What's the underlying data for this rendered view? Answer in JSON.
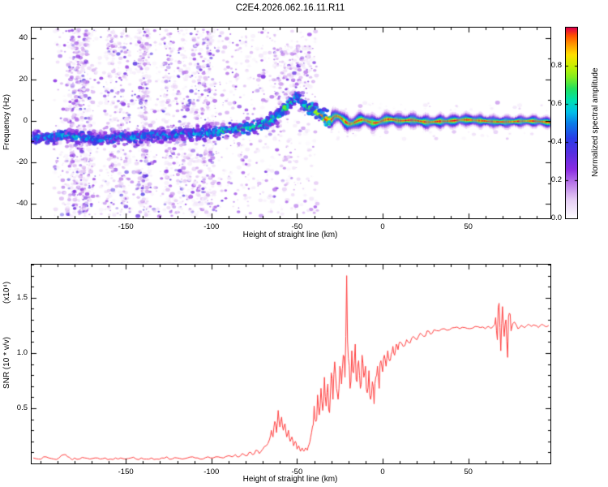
{
  "title": "C2E4.2026.062.16.11.R11",
  "chart_data": [
    {
      "type": "heatmap",
      "name": "spectrogram",
      "xlabel": "Height of straight line (km)",
      "ylabel": "Frequency (Hz)",
      "xlim": [
        -205,
        98
      ],
      "ylim": [
        -47,
        45
      ],
      "xticks": [
        -150,
        -100,
        -50,
        0,
        50
      ],
      "xtick_labels": [
        "-150",
        "-100",
        "-50",
        "0",
        "50"
      ],
      "yticks": [
        -40,
        -20,
        0,
        20,
        40
      ],
      "ytick_labels": [
        "-40",
        "-20",
        "0",
        "20",
        "40"
      ],
      "colorbar": {
        "label": "Normalized spectral amplitude",
        "range": [
          0,
          1
        ],
        "ticks": [
          0,
          0.2,
          0.4,
          0.6,
          0.8
        ],
        "tick_labels": [
          "0.0",
          "0.2",
          "0.4",
          "0.6",
          "0.8"
        ]
      },
      "colormap": [
        [
          0,
          "#ffffff"
        ],
        [
          0.03,
          "#f6effb"
        ],
        [
          0.1,
          "#e6cdf5"
        ],
        [
          0.18,
          "#bd7fe9"
        ],
        [
          0.26,
          "#8a2be2"
        ],
        [
          0.34,
          "#5a2fe0"
        ],
        [
          0.42,
          "#2a3ce8"
        ],
        [
          0.5,
          "#0a7de8"
        ],
        [
          0.56,
          "#00c0e8"
        ],
        [
          0.62,
          "#00e0b0"
        ],
        [
          0.68,
          "#20e060"
        ],
        [
          0.74,
          "#80ee20"
        ],
        [
          0.8,
          "#c8f000"
        ],
        [
          0.86,
          "#ffe000"
        ],
        [
          0.92,
          "#ff9000"
        ],
        [
          0.96,
          "#ff5000"
        ],
        [
          1,
          "#e00048"
        ]
      ],
      "ridge": {
        "points": [
          [
            -204,
            -8,
            0.5
          ],
          [
            -195,
            -8,
            0.5
          ],
          [
            -185,
            -7,
            0.52
          ],
          [
            -175,
            -8,
            0.5
          ],
          [
            -165,
            -9,
            0.46
          ],
          [
            -155,
            -8,
            0.5
          ],
          [
            -145,
            -8,
            0.47
          ],
          [
            -135,
            -7,
            0.5
          ],
          [
            -125,
            -7,
            0.48
          ],
          [
            -115,
            -6,
            0.5
          ],
          [
            -105,
            -6,
            0.52
          ],
          [
            -95,
            -5,
            0.55
          ],
          [
            -85,
            -4,
            0.57
          ],
          [
            -76,
            -3,
            0.6
          ],
          [
            -68,
            -1,
            0.6
          ],
          [
            -62,
            2,
            0.62
          ],
          [
            -57,
            6,
            0.6
          ],
          [
            -53,
            9,
            0.58
          ],
          [
            -50,
            12,
            0.52
          ],
          [
            -47,
            8,
            0.6
          ],
          [
            -44,
            6,
            0.62
          ],
          [
            -41,
            6,
            0.65
          ],
          [
            -38,
            4,
            0.7
          ],
          [
            -35,
            2,
            0.78
          ],
          [
            -32,
            1,
            0.88
          ],
          [
            -30,
            0,
            1
          ]
        ]
      },
      "noise": {
        "streaks": [
          -186,
          -100
        ],
        "bands": [
          {
            "x": [
              -192,
              -92
            ],
            "y": [
              -46,
              44
            ],
            "n": 2400,
            "vmax": 0.34,
            "streaky": true
          },
          {
            "x": [
              -92,
              -38
            ],
            "y": [
              -46,
              44
            ],
            "n": 520,
            "vmax": 0.28,
            "streaky": false
          },
          {
            "x": [
              -64,
              -42
            ],
            "y": [
              6,
              36
            ],
            "n": 200,
            "vmax": 0.3,
            "streaky": false
          },
          {
            "x": [
              -30,
              96
            ],
            "y": [
              -9,
              9
            ],
            "n": 130,
            "vmax": 0.14,
            "streaky": false,
            "avoid": 5
          }
        ]
      },
      "band": {
        "x": [
          -30,
          97.5
        ],
        "hw0": 3.2,
        "hw1": 2.2,
        "wiggle_amp": 2.3,
        "wiggle_freq": 0.42,
        "wiggle_damp": 22,
        "slow_amp": 0.45,
        "slow_freq": 0.16,
        "tail_drop_start": 70,
        "tail_drop_rate": 0.03,
        "layers": [
          [
            1.35,
            0.08
          ],
          [
            1.05,
            0.2
          ],
          [
            0.85,
            0.33
          ],
          [
            0.68,
            0.45
          ],
          [
            0.52,
            0.55
          ],
          [
            0.4,
            0.65
          ],
          [
            0.28,
            0.78
          ],
          [
            0.18,
            0.9
          ],
          [
            0.1,
            1
          ]
        ]
      }
    },
    {
      "type": "line",
      "name": "snr",
      "color": "#ff4040",
      "xlabel": "Height of straight line (km)",
      "ylabel": "SNR (10 * v/v)",
      "scale_label": "(x10⁴)",
      "xlim": [
        -205,
        98
      ],
      "ylim": [
        0,
        1.8
      ],
      "xticks": [
        -150,
        -100,
        -50,
        0,
        50
      ],
      "xtick_labels": [
        "-150",
        "-100",
        "-50",
        "0",
        "50"
      ],
      "yticks": [
        0.5,
        1,
        1.5
      ],
      "ytick_labels": [
        "0.5",
        "1.0",
        "1.5"
      ],
      "points": [
        [
          -204,
          0.05
        ],
        [
          -201,
          0.04
        ],
        [
          -198,
          0.06
        ],
        [
          -195,
          0.05
        ],
        [
          -192,
          0.04
        ],
        [
          -189,
          0.05
        ],
        [
          -186,
          0.08
        ],
        [
          -184,
          0.06
        ],
        [
          -182,
          0.04
        ],
        [
          -180,
          0.05
        ],
        [
          -177,
          0.04
        ],
        [
          -174,
          0.05
        ],
        [
          -171,
          0.04
        ],
        [
          -168,
          0.05
        ],
        [
          -165,
          0.04
        ],
        [
          -162,
          0.05
        ],
        [
          -159,
          0.04
        ],
        [
          -156,
          0.05
        ],
        [
          -153,
          0.05
        ],
        [
          -150,
          0.04
        ],
        [
          -147,
          0.05
        ],
        [
          -144,
          0.04
        ],
        [
          -141,
          0.05
        ],
        [
          -138,
          0.04
        ],
        [
          -135,
          0.05
        ],
        [
          -132,
          0.04
        ],
        [
          -129,
          0.05
        ],
        [
          -126,
          0.06
        ],
        [
          -123,
          0.04
        ],
        [
          -120,
          0.05
        ],
        [
          -117,
          0.04
        ],
        [
          -114,
          0.05
        ],
        [
          -111,
          0.06
        ],
        [
          -108,
          0.05
        ],
        [
          -105,
          0.04
        ],
        [
          -102,
          0.06
        ],
        [
          -99,
          0.05
        ],
        [
          -96,
          0.06
        ],
        [
          -93,
          0.05
        ],
        [
          -90,
          0.07
        ],
        [
          -88,
          0.06
        ],
        [
          -86,
          0.08
        ],
        [
          -84,
          0.06
        ],
        [
          -82,
          0.09
        ],
        [
          -80,
          0.07
        ],
        [
          -78,
          0.1
        ],
        [
          -76,
          0.08
        ],
        [
          -74,
          0.12
        ],
        [
          -72,
          0.09
        ],
        [
          -70,
          0.13
        ],
        [
          -68,
          0.16
        ],
        [
          -66,
          0.22
        ],
        [
          -65,
          0.3
        ],
        [
          -64,
          0.24
        ],
        [
          -63,
          0.38
        ],
        [
          -62,
          0.28
        ],
        [
          -61,
          0.48
        ],
        [
          -60,
          0.33
        ],
        [
          -59,
          0.42
        ],
        [
          -58,
          0.3
        ],
        [
          -57,
          0.36
        ],
        [
          -56,
          0.24
        ],
        [
          -55,
          0.3
        ],
        [
          -54,
          0.2
        ],
        [
          -53,
          0.24
        ],
        [
          -52,
          0.16
        ],
        [
          -51,
          0.2
        ],
        [
          -50,
          0.13
        ],
        [
          -49,
          0.16
        ],
        [
          -48,
          0.11
        ],
        [
          -47,
          0.14
        ],
        [
          -46,
          0.11
        ],
        [
          -45,
          0.14
        ],
        [
          -44,
          0.12
        ],
        [
          -43,
          0.17
        ],
        [
          -42,
          0.24
        ],
        [
          -41,
          0.33
        ],
        [
          -40,
          0.52
        ],
        [
          -39,
          0.38
        ],
        [
          -38,
          0.62
        ],
        [
          -37,
          0.44
        ],
        [
          -36,
          0.68
        ],
        [
          -35,
          0.48
        ],
        [
          -34,
          0.78
        ],
        [
          -33,
          0.52
        ],
        [
          -32,
          0.72
        ],
        [
          -31,
          0.46
        ],
        [
          -30,
          0.82
        ],
        [
          -29,
          0.58
        ],
        [
          -28,
          0.92
        ],
        [
          -27,
          0.68
        ],
        [
          -26,
          0.58
        ],
        [
          -25,
          0.88
        ],
        [
          -24,
          0.72
        ],
        [
          -23,
          0.98
        ],
        [
          -22,
          0.78
        ],
        [
          -21,
          1.7
        ],
        [
          -20,
          0.95
        ],
        [
          -19,
          0.68
        ],
        [
          -18,
          1.02
        ],
        [
          -17,
          0.82
        ],
        [
          -16,
          1.08
        ],
        [
          -15,
          0.74
        ],
        [
          -14,
          0.93
        ],
        [
          -13,
          0.68
        ],
        [
          -12,
          0.98
        ],
        [
          -11,
          0.78
        ],
        [
          -10,
          0.88
        ],
        [
          -9,
          0.64
        ],
        [
          -8,
          0.84
        ],
        [
          -7,
          0.58
        ],
        [
          -6,
          0.74
        ],
        [
          -5,
          0.54
        ],
        [
          -4,
          0.78
        ],
        [
          -3,
          0.88
        ],
        [
          -2,
          0.68
        ],
        [
          -1,
          0.93
        ],
        [
          0,
          0.83
        ],
        [
          1,
          0.98
        ],
        [
          2,
          0.88
        ],
        [
          3,
          1.02
        ],
        [
          4,
          0.93
        ],
        [
          5,
          0.99
        ],
        [
          6,
          1.06
        ],
        [
          7,
          0.98
        ],
        [
          8,
          1.08
        ],
        [
          9,
          1.03
        ],
        [
          10,
          1.1
        ],
        [
          12,
          1.06
        ],
        [
          14,
          1.12
        ],
        [
          16,
          1.09
        ],
        [
          18,
          1.15
        ],
        [
          20,
          1.12
        ],
        [
          22,
          1.18
        ],
        [
          24,
          1.15
        ],
        [
          26,
          1.2
        ],
        [
          28,
          1.17
        ],
        [
          30,
          1.21
        ],
        [
          33,
          1.2
        ],
        [
          36,
          1.22
        ],
        [
          39,
          1.21
        ],
        [
          42,
          1.23
        ],
        [
          45,
          1.22
        ],
        [
          48,
          1.23
        ],
        [
          51,
          1.22
        ],
        [
          54,
          1.24
        ],
        [
          57,
          1.23
        ],
        [
          60,
          1.22
        ],
        [
          62,
          1.24
        ],
        [
          64,
          1.23
        ],
        [
          65,
          1.25
        ],
        [
          66,
          1.32
        ],
        [
          67,
          1.12
        ],
        [
          68,
          1.45
        ],
        [
          69,
          1.02
        ],
        [
          70,
          1.42
        ],
        [
          71,
          1.15
        ],
        [
          72,
          1.3
        ],
        [
          73,
          0.96
        ],
        [
          74,
          1.36
        ],
        [
          75,
          1.2
        ],
        [
          77,
          1.28
        ],
        [
          79,
          1.22
        ],
        [
          81,
          1.25
        ],
        [
          83,
          1.23
        ],
        [
          85,
          1.26
        ],
        [
          87,
          1.24
        ],
        [
          89,
          1.25
        ],
        [
          91,
          1.23
        ],
        [
          93,
          1.26
        ],
        [
          95,
          1.24
        ],
        [
          97,
          1.25
        ]
      ]
    }
  ]
}
